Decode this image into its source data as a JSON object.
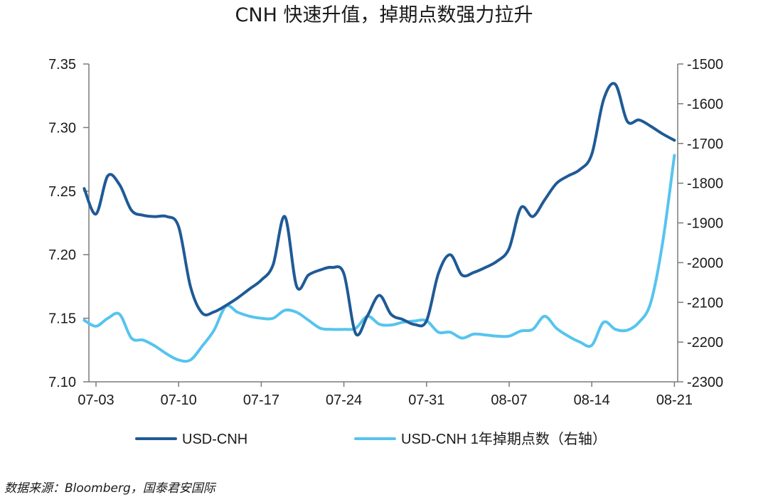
{
  "chart_data": {
    "type": "line",
    "title": "CNH 快速升值，掉期点数强力拉升",
    "source": "数据来源：Bloomberg，国泰君安国际",
    "x_tick_labels": [
      "07-03",
      "07-10",
      "07-17",
      "07-24",
      "07-31",
      "08-07",
      "08-14",
      "08-21"
    ],
    "x_range": [
      "2018-07-02",
      "2018-08-21"
    ],
    "y_left": {
      "ticks": [
        "7.10",
        "7.15",
        "7.20",
        "7.25",
        "7.30",
        "7.35"
      ],
      "ylim": [
        7.1,
        7.35
      ]
    },
    "y_right": {
      "ticks": [
        "-2300",
        "-2200",
        "-2100",
        "-2000",
        "-1900",
        "-1800",
        "-1700",
        "-1600",
        "-1500"
      ],
      "ylim": [
        -2300,
        -1500
      ]
    },
    "legend_position": "bottom",
    "grid": false,
    "series": [
      {
        "name": "USD-CNH",
        "axis": "left",
        "color": "#1f5a96",
        "points": [
          [
            "2018-07-02",
            7.252
          ],
          [
            "2018-07-03",
            7.232
          ],
          [
            "2018-07-04",
            7.262
          ],
          [
            "2018-07-05",
            7.255
          ],
          [
            "2018-07-06",
            7.235
          ],
          [
            "2018-07-07",
            7.231
          ],
          [
            "2018-07-08",
            7.23
          ],
          [
            "2018-07-09",
            7.23
          ],
          [
            "2018-07-10",
            7.222
          ],
          [
            "2018-07-11",
            7.175
          ],
          [
            "2018-07-12",
            7.154
          ],
          [
            "2018-07-13",
            7.155
          ],
          [
            "2018-07-14",
            7.16
          ],
          [
            "2018-07-15",
            7.166
          ],
          [
            "2018-07-16",
            7.173
          ],
          [
            "2018-07-17",
            7.18
          ],
          [
            "2018-07-18",
            7.192
          ],
          [
            "2018-07-19",
            7.23
          ],
          [
            "2018-07-20",
            7.175
          ],
          [
            "2018-07-21",
            7.184
          ],
          [
            "2018-07-22",
            7.188
          ],
          [
            "2018-07-23",
            7.19
          ],
          [
            "2018-07-24",
            7.185
          ],
          [
            "2018-07-25",
            7.138
          ],
          [
            "2018-07-26",
            7.152
          ],
          [
            "2018-07-27",
            7.168
          ],
          [
            "2018-07-28",
            7.153
          ],
          [
            "2018-07-29",
            7.149
          ],
          [
            "2018-07-30",
            7.145
          ],
          [
            "2018-07-31",
            7.148
          ],
          [
            "2018-08-01",
            7.185
          ],
          [
            "2018-08-02",
            7.2
          ],
          [
            "2018-08-03",
            7.184
          ],
          [
            "2018-08-04",
            7.186
          ],
          [
            "2018-08-05",
            7.19
          ],
          [
            "2018-08-06",
            7.195
          ],
          [
            "2018-08-07",
            7.205
          ],
          [
            "2018-08-08",
            7.237
          ],
          [
            "2018-08-09",
            7.23
          ],
          [
            "2018-08-10",
            7.243
          ],
          [
            "2018-08-11",
            7.256
          ],
          [
            "2018-08-12",
            7.262
          ],
          [
            "2018-08-13",
            7.267
          ],
          [
            "2018-08-14",
            7.279
          ],
          [
            "2018-08-15",
            7.322
          ],
          [
            "2018-08-16",
            7.334
          ],
          [
            "2018-08-17",
            7.305
          ],
          [
            "2018-08-18",
            7.306
          ],
          [
            "2018-08-19",
            7.301
          ],
          [
            "2018-08-20",
            7.295
          ],
          [
            "2018-08-21",
            7.29
          ]
        ]
      },
      {
        "name": "USD-CNH 1年掉期点数（右轴）",
        "axis": "right",
        "color": "#56c4ee",
        "points": [
          [
            "2018-07-02",
            -2145
          ],
          [
            "2018-07-03",
            -2160
          ],
          [
            "2018-07-04",
            -2140
          ],
          [
            "2018-07-05",
            -2130
          ],
          [
            "2018-07-06",
            -2190
          ],
          [
            "2018-07-07",
            -2195
          ],
          [
            "2018-07-08",
            -2210
          ],
          [
            "2018-07-09",
            -2230
          ],
          [
            "2018-07-10",
            -2245
          ],
          [
            "2018-07-11",
            -2245
          ],
          [
            "2018-07-12",
            -2210
          ],
          [
            "2018-07-13",
            -2170
          ],
          [
            "2018-07-14",
            -2110
          ],
          [
            "2018-07-15",
            -2125
          ],
          [
            "2018-07-16",
            -2135
          ],
          [
            "2018-07-17",
            -2140
          ],
          [
            "2018-07-18",
            -2140
          ],
          [
            "2018-07-19",
            -2120
          ],
          [
            "2018-07-20",
            -2125
          ],
          [
            "2018-07-21",
            -2145
          ],
          [
            "2018-07-22",
            -2165
          ],
          [
            "2018-07-23",
            -2168
          ],
          [
            "2018-07-24",
            -2168
          ],
          [
            "2018-07-25",
            -2165
          ],
          [
            "2018-07-26",
            -2135
          ],
          [
            "2018-07-27",
            -2155
          ],
          [
            "2018-07-28",
            -2157
          ],
          [
            "2018-07-29",
            -2150
          ],
          [
            "2018-07-30",
            -2147
          ],
          [
            "2018-07-31",
            -2146
          ],
          [
            "2018-08-01",
            -2175
          ],
          [
            "2018-08-02",
            -2175
          ],
          [
            "2018-08-03",
            -2190
          ],
          [
            "2018-08-04",
            -2180
          ],
          [
            "2018-08-05",
            -2182
          ],
          [
            "2018-08-06",
            -2185
          ],
          [
            "2018-08-07",
            -2185
          ],
          [
            "2018-08-08",
            -2172
          ],
          [
            "2018-08-09",
            -2168
          ],
          [
            "2018-08-10",
            -2135
          ],
          [
            "2018-08-11",
            -2165
          ],
          [
            "2018-08-12",
            -2185
          ],
          [
            "2018-08-13",
            -2200
          ],
          [
            "2018-08-14",
            -2208
          ],
          [
            "2018-08-15",
            -2150
          ],
          [
            "2018-08-16",
            -2168
          ],
          [
            "2018-08-17",
            -2170
          ],
          [
            "2018-08-18",
            -2150
          ],
          [
            "2018-08-19",
            -2100
          ],
          [
            "2018-08-20",
            -1950
          ],
          [
            "2018-08-21",
            -1730
          ]
        ]
      }
    ]
  }
}
